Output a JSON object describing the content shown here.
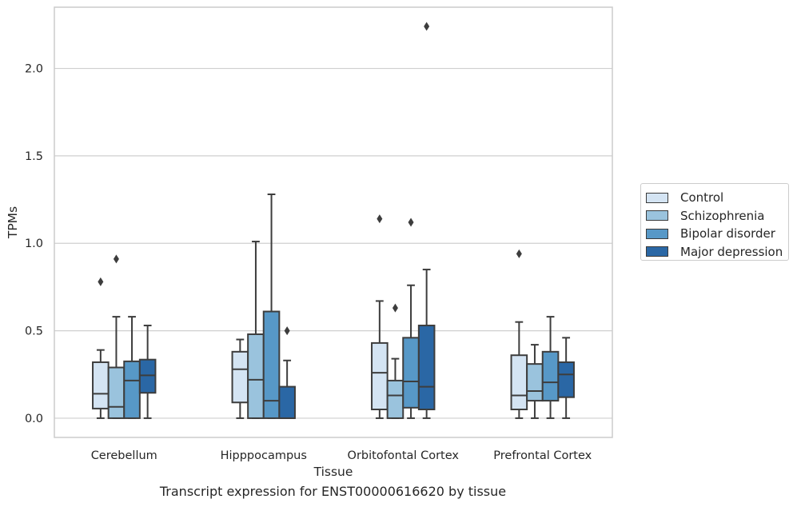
{
  "chart_data": {
    "type": "box",
    "title": "",
    "xlabel": "Tissue",
    "ylabel": "TPMs",
    "ylim": [
      -0.11,
      2.35
    ],
    "yticks": [
      "0.0",
      "0.5",
      "1.0",
      "1.5",
      "2.0"
    ],
    "grid": true,
    "legend_placement": "right, outside plot",
    "categories": [
      "Cerebellum",
      "Hipppocampus",
      "Orbitofontal Cortex",
      "Prefrontal Cortex"
    ],
    "series": [
      {
        "name": "Control",
        "color": "#d4e4f3",
        "boxes": [
          {
            "whislo": 0.0,
            "q1": 0.055,
            "med": 0.14,
            "q3": 0.32,
            "whishi": 0.39,
            "fliers": [
              0.78
            ]
          },
          {
            "whislo": 0.0,
            "q1": 0.09,
            "med": 0.28,
            "q3": 0.38,
            "whishi": 0.45,
            "fliers": []
          },
          {
            "whislo": 0.0,
            "q1": 0.05,
            "med": 0.26,
            "q3": 0.43,
            "whishi": 0.67,
            "fliers": [
              1.14
            ]
          },
          {
            "whislo": 0.0,
            "q1": 0.05,
            "med": 0.13,
            "q3": 0.36,
            "whishi": 0.55,
            "fliers": [
              0.94
            ]
          }
        ]
      },
      {
        "name": "Schizophrenia",
        "color": "#9ac3dd",
        "boxes": [
          {
            "whislo": 0.0,
            "q1": 0.0,
            "med": 0.065,
            "q3": 0.29,
            "whishi": 0.58,
            "fliers": [
              0.91
            ]
          },
          {
            "whislo": 0.0,
            "q1": 0.0,
            "med": 0.22,
            "q3": 0.48,
            "whishi": 1.01,
            "fliers": []
          },
          {
            "whislo": 0.0,
            "q1": 0.0,
            "med": 0.13,
            "q3": 0.215,
            "whishi": 0.34,
            "fliers": [
              0.63
            ]
          },
          {
            "whislo": 0.0,
            "q1": 0.1,
            "med": 0.155,
            "q3": 0.31,
            "whishi": 0.42,
            "fliers": []
          }
        ]
      },
      {
        "name": "Bipolar disorder",
        "color": "#5798c7",
        "boxes": [
          {
            "whislo": 0.0,
            "q1": 0.0,
            "med": 0.215,
            "q3": 0.325,
            "whishi": 0.58,
            "fliers": []
          },
          {
            "whislo": 0.0,
            "q1": 0.0,
            "med": 0.1,
            "q3": 0.61,
            "whishi": 1.28,
            "fliers": []
          },
          {
            "whislo": 0.0,
            "q1": 0.06,
            "med": 0.21,
            "q3": 0.46,
            "whishi": 0.76,
            "fliers": [
              1.12
            ]
          },
          {
            "whislo": 0.0,
            "q1": 0.1,
            "med": 0.205,
            "q3": 0.38,
            "whishi": 0.58,
            "fliers": []
          }
        ]
      },
      {
        "name": "Major depression",
        "color": "#2a67a5",
        "boxes": [
          {
            "whislo": 0.0,
            "q1": 0.145,
            "med": 0.245,
            "q3": 0.335,
            "whishi": 0.53,
            "fliers": []
          },
          {
            "whislo": 0.0,
            "q1": 0.0,
            "med": 0.0,
            "q3": 0.18,
            "whishi": 0.33,
            "fliers": [
              0.5
            ]
          },
          {
            "whislo": 0.0,
            "q1": 0.05,
            "med": 0.18,
            "q3": 0.53,
            "whishi": 0.85,
            "fliers": [
              2.24
            ]
          },
          {
            "whislo": 0.0,
            "q1": 0.12,
            "med": 0.25,
            "q3": 0.32,
            "whishi": 0.46,
            "fliers": []
          }
        ]
      }
    ]
  },
  "caption": "Transcript expression for ENST00000616620 by tissue"
}
